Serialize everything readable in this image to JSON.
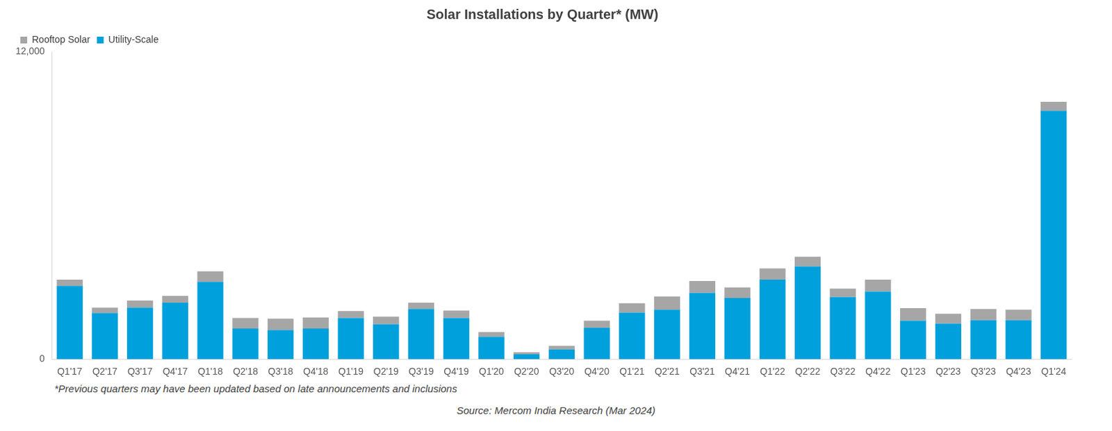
{
  "chart_data": {
    "type": "bar",
    "title": "Solar Installations by Quarter* (MW)",
    "categories": [
      "Q1'17",
      "Q2'17",
      "Q3'17",
      "Q4'17",
      "Q1'18",
      "Q2'18",
      "Q3'18",
      "Q4'18",
      "Q1'19",
      "Q2'19",
      "Q3'19",
      "Q4'19",
      "Q1'20",
      "Q2'20",
      "Q3'20",
      "Q4'20",
      "Q1'21",
      "Q2'21",
      "Q3'21",
      "Q4'21",
      "Q1'22",
      "Q2'22",
      "Q3'22",
      "Q4'22",
      "Q1'23",
      "Q2'23",
      "Q3'23",
      "Q4'23",
      "Q1'24"
    ],
    "series": [
      {
        "name": "Utility-Scale",
        "color": "#00a0dc",
        "values": [
          2860,
          1800,
          2010,
          2200,
          3020,
          1200,
          1140,
          1200,
          1610,
          1360,
          1960,
          1610,
          870,
          190,
          380,
          1220,
          1820,
          1930,
          2590,
          2390,
          3100,
          3620,
          2420,
          2640,
          1500,
          1390,
          1520,
          1520,
          9690
        ]
      },
      {
        "name": "Rooftop Solar",
        "color": "#a6a6a6",
        "values": [
          245,
          210,
          280,
          270,
          410,
          410,
          440,
          430,
          270,
          300,
          240,
          290,
          190,
          80,
          140,
          280,
          360,
          520,
          460,
          410,
          440,
          380,
          330,
          460,
          490,
          380,
          440,
          410,
          350
        ]
      }
    ],
    "stacked": true,
    "ylim": [
      0,
      12000
    ],
    "yticks": [
      0,
      {
        "value": 12000,
        "label": "12,000"
      }
    ],
    "grid": false,
    "legend": "top-left",
    "annotations": [
      "*Previous quarters may have been updated based on late announcements and inclusions",
      "Source: Mercom India Research (Mar 2024)"
    ]
  }
}
